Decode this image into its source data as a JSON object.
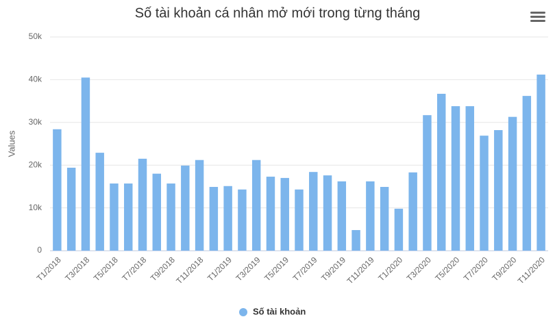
{
  "chart_data": {
    "type": "bar",
    "title": "Số tài khoản cá nhân mở mới trong từng tháng",
    "y_axis_label": "Values",
    "categories": [
      "T1/2018",
      null,
      "T3/2018",
      null,
      "T5/2018",
      null,
      "T7/2018",
      null,
      "T9/2018",
      null,
      "T11/2018",
      null,
      "T1/2019",
      null,
      "T3/2019",
      null,
      "T5/2019",
      null,
      "T7/2019",
      null,
      "T9/2019",
      null,
      "T11/2019",
      null,
      "T1/2020",
      null,
      "T3/2020",
      null,
      "T5/2020",
      null,
      "T7/2020",
      null,
      "T9/2020",
      null,
      "T11/2020"
    ],
    "series": [
      {
        "name": "Số tài khoản",
        "color": "#7cb5ec",
        "values": [
          28400,
          19400,
          40500,
          22900,
          15700,
          15700,
          21500,
          18000,
          15700,
          19900,
          21200,
          14900,
          15100,
          14300,
          21200,
          17300,
          17000,
          14300,
          18400,
          17600,
          16200,
          4800,
          16200,
          14900,
          9800,
          18300,
          31700,
          36700,
          33800,
          33800,
          26900,
          28200,
          31300,
          36200,
          41200
        ]
      }
    ],
    "ylim": [
      0,
      50000
    ],
    "yticks": [
      0,
      {
        "value": 10000,
        "label": "10k"
      },
      {
        "value": 20000,
        "label": "20k"
      },
      {
        "value": 30000,
        "label": "30k"
      },
      {
        "value": 40000,
        "label": "40k"
      },
      {
        "value": 50000,
        "label": "50k"
      }
    ],
    "grid": true,
    "legend": "bottom"
  }
}
